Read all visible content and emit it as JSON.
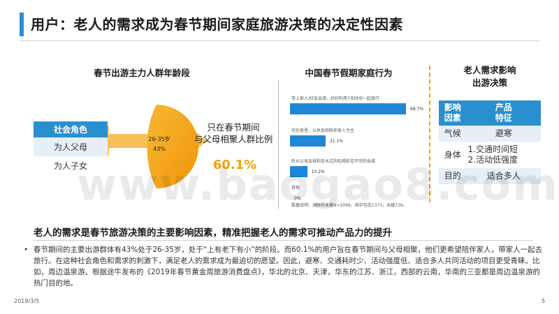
{
  "title": "用户：老人的需求成为春节期间家庭旅游决策的决定性因素",
  "left": {
    "heading": "春节出游主力人群年龄段",
    "roles": {
      "header": "社会角色",
      "items": [
        "为人父母",
        "为人子女"
      ]
    },
    "pie": {
      "label": "26-35岁",
      "percent": "43%",
      "value": 43
    },
    "mid_text": "只在春节期间\n与父母相聚人群比例",
    "big_percent": "60.1%"
  },
  "bars": {
    "heading": "中国春节假期家庭行为",
    "items": [
      {
        "label": "带上家人/好友出游，好好利用7天时间一起旅行",
        "value": 68.7,
        "display": "68.7%"
      },
      {
        "label": "宅在家里，以休息和陪伴家人为主",
        "value": 21.1,
        "display": "21.1%"
      },
      {
        "label": "听从父母安排和流水式的吃喝和见不完的亲戚",
        "value": 10.2,
        "display": "10.2%"
      },
      {
        "label": "其他",
        "value": 0,
        "display": "0%"
      }
    ],
    "note": "数据说明：调研样本量N=2099，其中包括1373，未婚726。"
  },
  "influence": {
    "heading": "老人需求影响\n出游决策",
    "header_col1": "影响\n因素",
    "header_col2": "产品\n特征",
    "rows": [
      {
        "factor": "气候",
        "feature": "避寒"
      },
      {
        "factor": "身体",
        "feature": "1.交通时间短\n2.活动低强度"
      },
      {
        "factor": "目的",
        "feature": "适合多人"
      }
    ]
  },
  "watermark": "www.baogao8.com",
  "conclusion": "老人的需求是春节旅游决策的主要影响因素，精准把握老人的需求可推动产品力的提升",
  "body": "春节期间的主要出游群体有43%处于26-35岁，处于“上有老下有小”的阶段。而60.1%的用户旨在春节期间与父母相聚，他们更希望陪伴家人，带家人一起去旅行。在这种社会角色和需求的刺激下，满足老人的需求成为最迫切的愿望。因此，避寒、交通耗时少、活动强度低、适合多人共同活动的项目更受青睐。比如，周边温泉游。根据途牛发布的《2019年春节黄金周旅游消费盘点》，华北的北京、天津，华东的江苏、浙江，西部的云南，华南的三亚都是周边温泉游的热门目的地。",
  "bullet": "•",
  "footer": {
    "date": "2019/3/5",
    "page": "5"
  },
  "colors": {
    "accent_blue": "#2a8fcf",
    "bar_blue": "#1e88d6",
    "orange": "#f0a30a"
  }
}
